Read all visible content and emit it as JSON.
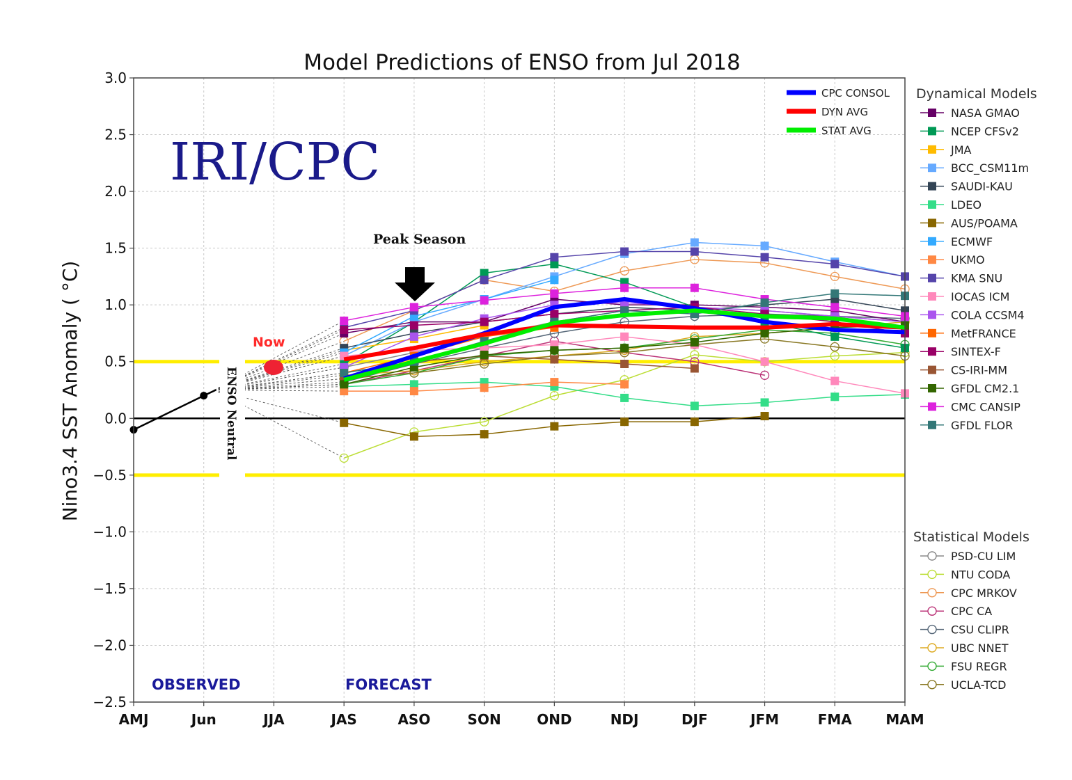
{
  "chart_data": {
    "type": "line",
    "title": "Model Predictions of ENSO from Jul 2018",
    "ylabel": "Nino3.4 SST Anomaly ( °C)",
    "xlabel": "",
    "categories": [
      "AMJ",
      "Jun",
      "JJA",
      "JAS",
      "ASO",
      "SON",
      "OND",
      "NDJ",
      "DJF",
      "JFM",
      "FMA",
      "MAM"
    ],
    "ylim": [
      -2.5,
      3.0
    ],
    "yticks": [
      "3.0",
      "2.5",
      "2.0",
      "1.5",
      "1.0",
      "0.5",
      "0.0",
      "−0.5",
      "−1.0",
      "−1.5",
      "−2.0",
      "−2.5"
    ],
    "grid": true,
    "thresholds": [
      0.5,
      -0.5
    ],
    "observed": {
      "x": [
        "AMJ",
        "Jun"
      ],
      "values": [
        -0.1,
        0.2
      ]
    },
    "now_value": 0.45,
    "annotations": {
      "watermark": "IRI/CPC",
      "observed": "OBSERVED",
      "forecast": "FORECAST",
      "peak_season": "Peak Season",
      "now": "Now",
      "enso_neutral": "ENSO Neutral"
    },
    "consensus_series": [
      {
        "name": "CPC CONSOL",
        "color": "#0000ff",
        "start": 3,
        "values": [
          0.35,
          0.55,
          0.75,
          0.98,
          1.05,
          0.97,
          0.85,
          0.78,
          0.76
        ]
      },
      {
        "name": "DYN AVG",
        "color": "#ff0000",
        "start": 3,
        "values": [
          0.52,
          0.62,
          0.74,
          0.82,
          0.81,
          0.8,
          0.8,
          0.83,
          0.8
        ]
      },
      {
        "name": "STAT AVG",
        "color": "#00ee00",
        "start": 3,
        "values": [
          0.34,
          0.5,
          0.66,
          0.84,
          0.91,
          0.95,
          0.9,
          0.88,
          0.8
        ]
      }
    ],
    "dynamical_models": {
      "heading": "Dynamical Models",
      "series": [
        {
          "name": "NASA GMAO",
          "color": "#660066",
          "start": 3,
          "values": [
            0.75,
            0.85,
            0.85,
            1.05,
            1.0,
            1.0,
            0.98,
            0.95,
            0.85
          ]
        },
        {
          "name": "NCEP CFSv2",
          "color": "#009955",
          "start": 3,
          "values": [
            0.48,
            0.85,
            1.28,
            1.36,
            1.2,
            0.98,
            0.85,
            0.72,
            0.62
          ]
        },
        {
          "name": "JMA",
          "color": "#ffbb00",
          "start": 3,
          "values": [
            0.6,
            0.7,
            0.82
          ]
        },
        {
          "name": "BCC_CSM11m",
          "color": "#66aaff",
          "start": 3,
          "values": [
            0.55,
            0.85,
            1.05,
            1.25,
            1.45,
            1.55,
            1.52,
            1.38,
            1.25
          ]
        },
        {
          "name": "SAUDI-KAU",
          "color": "#334455",
          "start": 3,
          "values": [
            0.62,
            0.75,
            0.85,
            0.92,
            0.98,
            0.95,
            1.0,
            1.05,
            0.95
          ]
        },
        {
          "name": "LDEO",
          "color": "#33dd88",
          "start": 3,
          "values": [
            0.28,
            0.3,
            0.32,
            0.28,
            0.18,
            0.11,
            0.14,
            0.19,
            0.21
          ]
        },
        {
          "name": "AUS/POAMA",
          "color": "#886600",
          "start": 3,
          "values": [
            -0.04,
            -0.16,
            -0.14,
            -0.07,
            -0.03,
            -0.03,
            0.02
          ]
        },
        {
          "name": "ECMWF",
          "color": "#33aaff",
          "start": 3,
          "values": [
            0.58,
            0.9,
            1.05,
            1.22
          ]
        },
        {
          "name": "UKMO",
          "color": "#ff8844",
          "start": 3,
          "values": [
            0.24,
            0.24,
            0.27,
            0.32,
            0.3
          ]
        },
        {
          "name": "KMA SNU",
          "color": "#5544aa",
          "start": 3,
          "values": [
            0.8,
            0.95,
            1.22,
            1.42,
            1.47,
            1.47,
            1.42,
            1.36,
            1.25
          ]
        },
        {
          "name": "IOCAS ICM",
          "color": "#ff88bb",
          "start": 3,
          "values": [
            0.55,
            0.6,
            0.62,
            0.65,
            0.72,
            0.65,
            0.5,
            0.33,
            0.22
          ]
        },
        {
          "name": "COLA CCSM4",
          "color": "#aa55ee",
          "start": 3,
          "values": [
            0.45,
            0.72,
            0.88,
            1.0,
            1.02,
            0.98,
            0.95,
            0.9,
            0.85
          ]
        },
        {
          "name": "MetFRANCE",
          "color": "#ff6600",
          "start": 3,
          "values": [
            0.4,
            0.55,
            0.72,
            0.8
          ]
        },
        {
          "name": "SINTEX-F",
          "color": "#990066",
          "start": 3,
          "values": [
            0.78,
            0.82,
            0.85,
            0.92,
            0.95,
            0.98,
            0.92,
            0.85,
            0.75
          ]
        },
        {
          "name": "CS-IRI-MM",
          "color": "#995533",
          "start": 3,
          "values": [
            0.35,
            0.5,
            0.55,
            0.52,
            0.48,
            0.44
          ]
        },
        {
          "name": "GFDL CM2.1",
          "color": "#336600",
          "start": 3,
          "values": [
            0.3,
            0.45,
            0.56,
            0.6,
            0.62,
            0.67,
            0.75,
            0.8,
            0.82
          ]
        },
        {
          "name": "CMC CANSIP",
          "color": "#dd22dd",
          "start": 3,
          "values": [
            0.86,
            0.98,
            1.04,
            1.1,
            1.15,
            1.15,
            1.05,
            0.98,
            0.9
          ]
        },
        {
          "name": "GFDL FLOR",
          "color": "#337777",
          "start": 3,
          "values": [
            0.4,
            0.5,
            0.68,
            0.85,
            0.95,
            0.92,
            1.02,
            1.1,
            1.08
          ]
        }
      ]
    },
    "statistical_models": {
      "heading": "Statistical Models",
      "series": [
        {
          "name": "PSD-CU LIM",
          "color": "#888888",
          "start": 3,
          "values": [
            0.45,
            0.58,
            0.72,
            0.85,
            0.95,
            0.98,
            0.95,
            0.9,
            0.85
          ]
        },
        {
          "name": "NTU CODA",
          "color": "#bbdd33",
          "start": 3,
          "values": [
            -0.35,
            -0.12,
            -0.03,
            0.2,
            0.34,
            0.56,
            0.5,
            0.55,
            0.58
          ]
        },
        {
          "name": "CPC MRKOV",
          "color": "#ee9955",
          "start": 3,
          "values": [
            0.68,
            0.95,
            1.22,
            1.12,
            1.3,
            1.4,
            1.37,
            1.25,
            1.14
          ]
        },
        {
          "name": "CPC CA",
          "color": "#bb3377",
          "start": 3,
          "values": [
            0.3,
            0.42,
            0.55,
            0.68,
            0.58,
            0.5,
            0.38
          ]
        },
        {
          "name": "CSU CLIPR",
          "color": "#556677",
          "start": 3,
          "values": [
            0.32,
            0.48,
            0.62,
            0.75,
            0.85,
            0.9,
            0.92,
            0.9,
            0.88
          ]
        },
        {
          "name": "UBC NNET",
          "color": "#ddaa22",
          "start": 3,
          "values": [
            0.38,
            0.42,
            0.5,
            0.55,
            0.6,
            0.72,
            0.75,
            0.8,
            0.85
          ]
        },
        {
          "name": "FSU REGR",
          "color": "#33aa33",
          "start": 3,
          "values": [
            0.3,
            0.4,
            0.55,
            0.6,
            0.62,
            0.7,
            0.78,
            0.75,
            0.65
          ]
        },
        {
          "name": "UCLA-TCD",
          "color": "#887722",
          "start": 3,
          "values": [
            0.35,
            0.4,
            0.48,
            0.55,
            0.58,
            0.65,
            0.7,
            0.63,
            0.55
          ]
        }
      ]
    }
  }
}
